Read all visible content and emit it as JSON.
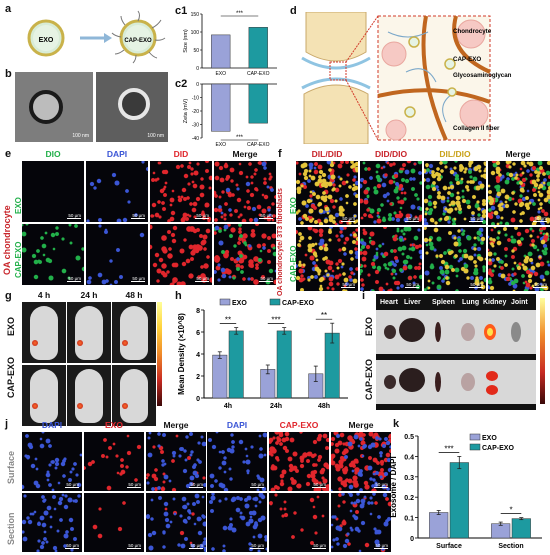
{
  "panel_labels": {
    "a": "a",
    "b": "b",
    "c1": "c1",
    "c2": "c2",
    "d": "d",
    "e": "e",
    "f": "f",
    "g": "g",
    "h": "h",
    "i": "i",
    "j": "j",
    "k": "k"
  },
  "panel_a": {
    "exo": "EXO",
    "cap_exo": "CAP-EXO"
  },
  "panel_b": {
    "scale_left": "100 nm",
    "scale_right": "100 nm"
  },
  "panel_d": {
    "labels": [
      "Chondrocyte",
      "CAP-EXO",
      "Glycosaminoglycan",
      "Collagen II fiber"
    ]
  },
  "panel_e": {
    "headers": [
      "DIO",
      "DAPI",
      "DID",
      "Merge"
    ],
    "side_label": "OA chondrocyte",
    "rows": [
      "EXO",
      "CAP-EXO"
    ],
    "scale": "50 μm"
  },
  "panel_f": {
    "headers": [
      "DIL/DID",
      "DID/DIO",
      "DIL/DIO",
      "Merge"
    ],
    "side_label": "OA chondrocyte/ 3T3 fibroblasts",
    "rows": [
      "EXO",
      "CAP-EXO"
    ],
    "scale": "50 μm"
  },
  "panel_g": {
    "times": [
      "4 h",
      "24 h",
      "48 h"
    ],
    "rows": [
      "EXO",
      "CAP-EXO"
    ]
  },
  "panel_i": {
    "organs": [
      "Heart",
      "Liver",
      "Spleen",
      "Lung",
      "Kidney",
      "Joint"
    ],
    "rows": [
      "EXO",
      "CAP-EXO"
    ]
  },
  "panel_j": {
    "headers": [
      "DAPI",
      "EXO",
      "Merge",
      "DAPI",
      "CAP-EXO",
      "Merge"
    ],
    "rows": [
      "Surface",
      "Section"
    ],
    "scale": "50 μm"
  },
  "colors": {
    "exo": "#9aa2d8",
    "cap_exo": "#1d9aa0",
    "dio": "#22b04a",
    "dapi": "#3b56d6",
    "did": "#e0262c",
    "dil": "#e5c53a"
  },
  "chart_data": [
    {
      "type": "bar",
      "panel": "c1",
      "categories": [
        "EXO",
        "CAP-EXO"
      ],
      "values": [
        92,
        113
      ],
      "ylabel": "Size (nm)",
      "ylim": [
        0,
        150
      ],
      "yticks": [
        0,
        50,
        100,
        150
      ],
      "significance": "***"
    },
    {
      "type": "bar",
      "panel": "c2",
      "categories": [
        "EXO",
        "CAP-EXO"
      ],
      "values": [
        -35,
        -29
      ],
      "ylabel": "Zeta (mV)",
      "ylim": [
        -40,
        0
      ],
      "yticks": [
        0,
        -10,
        -20,
        -30,
        -40
      ],
      "significance": "***"
    },
    {
      "type": "bar",
      "panel": "h",
      "categories": [
        "4h",
        "24h",
        "48h"
      ],
      "series": [
        {
          "name": "EXO",
          "values": [
            3.9,
            2.6,
            2.2
          ],
          "errors": [
            0.3,
            0.4,
            0.7
          ]
        },
        {
          "name": "CAP-EXO",
          "values": [
            6.1,
            6.1,
            5.9
          ],
          "errors": [
            0.3,
            0.3,
            0.9
          ]
        }
      ],
      "ylabel": "Mean Density (×10^8)",
      "ylim": [
        0,
        8
      ],
      "yticks": [
        0,
        2,
        4,
        6,
        8
      ],
      "significance": [
        "**",
        "***",
        "**"
      ],
      "legend": "top"
    },
    {
      "type": "bar",
      "panel": "k",
      "categories": [
        "Surface",
        "Section"
      ],
      "series": [
        {
          "name": "EXO",
          "values": [
            0.125,
            0.07
          ],
          "errors": [
            0.01,
            0.008
          ]
        },
        {
          "name": "CAP-EXO",
          "values": [
            0.37,
            0.095
          ],
          "errors": [
            0.03,
            0.005
          ]
        }
      ],
      "ylabel": "Exosome / DAPI",
      "ylim": [
        0,
        0.5
      ],
      "yticks": [
        0,
        0.1,
        0.2,
        0.3,
        0.4,
        0.5
      ],
      "significance": [
        "***",
        "*"
      ],
      "legend": "top-right"
    }
  ]
}
